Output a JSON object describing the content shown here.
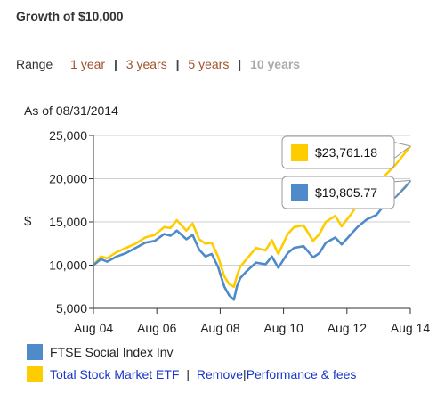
{
  "page": {
    "title": "Growth of $10,000",
    "range_label": "Range",
    "range_options": [
      "1 year",
      "3 years",
      "5 years",
      "10 years"
    ],
    "as_of": "As of 08/31/2014"
  },
  "legend": {
    "series1": "FTSE Social Index Inv",
    "series2": "Total Stock Market ETF",
    "remove": "Remove",
    "perf": "Performance & fees",
    "sep1": "|",
    "sep2": "|"
  },
  "tooltips": {
    "series2_value": "$23,761.18",
    "series1_value": "$19,805.77"
  },
  "colors": {
    "series1": "#4f8bc9",
    "series2": "#ffcc00",
    "link": "#1a35c9",
    "range_link": "#a0522d"
  },
  "chart_data": {
    "type": "line",
    "ylabel": "$",
    "ylim": [
      5000,
      25000
    ],
    "yticks": [
      "5,000",
      "10,000",
      "15,000",
      "20,000",
      "25,000"
    ],
    "ytick_values": [
      5000,
      10000,
      15000,
      20000,
      25000
    ],
    "xlim": [
      2004.667,
      2014.667
    ],
    "xticks": [
      "Aug 04",
      "Aug 06",
      "Aug 08",
      "Aug 10",
      "Aug 12",
      "Aug 14"
    ],
    "xtick_values": [
      2004.667,
      2006.667,
      2008.667,
      2010.667,
      2012.667,
      2014.667
    ],
    "grid": true,
    "series": [
      {
        "name": "FTSE Social Index Inv",
        "x": [
          2004.667,
          2004.9,
          2005.1,
          2005.4,
          2005.7,
          2006.0,
          2006.3,
          2006.6,
          2006.9,
          2007.1,
          2007.3,
          2007.6,
          2007.8,
          2008.0,
          2008.2,
          2008.4,
          2008.6,
          2008.8,
          2008.95,
          2009.1,
          2009.2,
          2009.3,
          2009.5,
          2009.8,
          2010.1,
          2010.3,
          2010.5,
          2010.8,
          2011.0,
          2011.3,
          2011.6,
          2011.8,
          2012.0,
          2012.3,
          2012.5,
          2012.8,
          2013.0,
          2013.3,
          2013.6,
          2013.9,
          2014.2,
          2014.5,
          2014.667
        ],
        "values": [
          10000,
          10700,
          10400,
          11000,
          11400,
          12000,
          12600,
          12800,
          13600,
          13400,
          14000,
          13000,
          13500,
          11800,
          11000,
          11300,
          9800,
          7500,
          6500,
          6000,
          7600,
          8500,
          9300,
          10300,
          10100,
          11000,
          9700,
          11400,
          12000,
          12200,
          10900,
          11400,
          12600,
          13200,
          12400,
          13600,
          14400,
          15300,
          15800,
          17200,
          17900,
          19000,
          19806
        ]
      },
      {
        "name": "Total Stock Market ETF",
        "x": [
          2004.667,
          2004.9,
          2005.1,
          2005.4,
          2005.7,
          2006.0,
          2006.3,
          2006.6,
          2006.9,
          2007.1,
          2007.3,
          2007.6,
          2007.8,
          2008.0,
          2008.2,
          2008.4,
          2008.6,
          2008.8,
          2008.95,
          2009.1,
          2009.2,
          2009.3,
          2009.5,
          2009.8,
          2010.1,
          2010.3,
          2010.5,
          2010.8,
          2011.0,
          2011.3,
          2011.6,
          2011.8,
          2012.0,
          2012.3,
          2012.5,
          2012.8,
          2013.0,
          2013.3,
          2013.6,
          2013.9,
          2014.2,
          2014.5,
          2014.667
        ],
        "values": [
          10000,
          11000,
          10800,
          11500,
          12000,
          12500,
          13200,
          13500,
          14400,
          14300,
          15200,
          14000,
          14800,
          13000,
          12500,
          12600,
          11000,
          8700,
          7800,
          7500,
          8800,
          9800,
          10700,
          12000,
          11700,
          12900,
          11300,
          13600,
          14400,
          14600,
          12800,
          13600,
          15000,
          15700,
          14500,
          15900,
          17000,
          18300,
          18900,
          20500,
          21600,
          23000,
          23761
        ]
      }
    ]
  }
}
